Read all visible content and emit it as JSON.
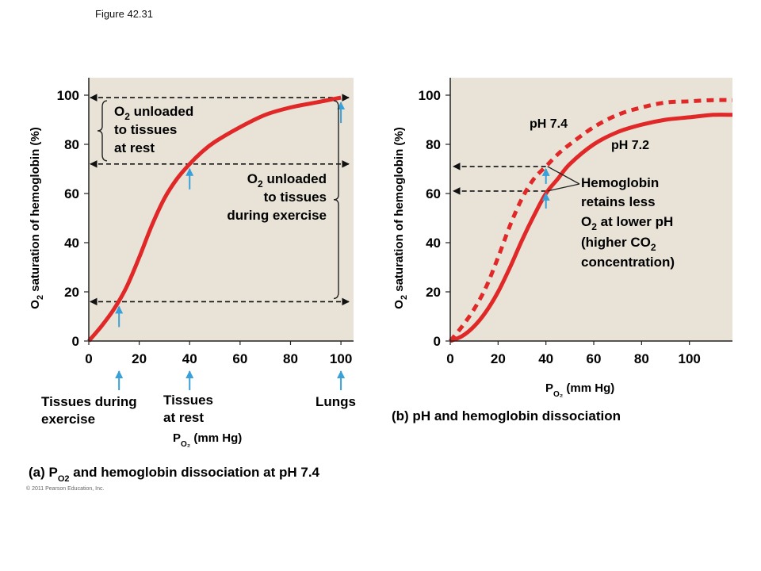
{
  "figure_label": "Figure 42.31",
  "copyright": "© 2011 Pearson Education, Inc.",
  "colors": {
    "plot_bg": "#e8e3d6",
    "curve": "#e02828",
    "arrow_blue": "#3aa0d8",
    "dash": "#111111"
  },
  "chart_data": [
    {
      "type": "line",
      "caption_prefix": "(a) P",
      "caption_sub": "O2",
      "caption_suffix": " and hemoglobin dissociation at pH 7.4",
      "ylabel_main": "O",
      "ylabel_sub": "2",
      "ylabel_rest": " saturation of hemoglobin (%)",
      "xlabel_main": "P",
      "xlabel_sub": "O₂",
      "xlabel_rest": " (mm Hg)",
      "xlim": [
        0,
        105
      ],
      "ylim": [
        0,
        100
      ],
      "xticks": [
        "0",
        "20",
        "40",
        "60",
        "80",
        "100"
      ],
      "yticks": [
        "0",
        "20",
        "40",
        "60",
        "80",
        "100"
      ],
      "grid": false,
      "series": [
        {
          "style": "solid",
          "x": [
            0,
            5,
            10,
            15,
            20,
            25,
            30,
            35,
            40,
            45,
            50,
            60,
            70,
            80,
            90,
            100
          ],
          "y": [
            0,
            6,
            13,
            22,
            34,
            47,
            58,
            66,
            72,
            77,
            81,
            87,
            92,
            95,
            97,
            99
          ]
        }
      ],
      "reference_levels": [
        {
          "x": 100,
          "y": 99
        },
        {
          "x": 40,
          "y": 72
        },
        {
          "x": 12,
          "y": 16
        }
      ],
      "annotations": {
        "rest_line1_main": "O",
        "rest_line1_sub": "2",
        "rest_line1_rest": " unloaded",
        "rest_line2": "to tissues",
        "rest_line3": "at rest",
        "exercise_line1_main": "O",
        "exercise_line1_sub": "2",
        "exercise_line1_rest": " unloaded",
        "exercise_line2": "to tissues",
        "exercise_line3": "during exercise"
      },
      "location_labels": {
        "exercise_line1": "Tissues during",
        "exercise_line2": "exercise",
        "rest_line1": "Tissues",
        "rest_line2": "at rest",
        "lungs": "Lungs"
      }
    },
    {
      "type": "line",
      "caption": "(b) pH and hemoglobin dissociation",
      "ylabel_main": "O",
      "ylabel_sub": "2",
      "ylabel_rest": " saturation of hemoglobin (%)",
      "xlabel_main": "P",
      "xlabel_sub": "O₂",
      "xlabel_rest": " (mm Hg)",
      "xlim": [
        0,
        118
      ],
      "ylim": [
        0,
        100
      ],
      "xticks": [
        "0",
        "20",
        "40",
        "60",
        "80",
        "100"
      ],
      "yticks": [
        "0",
        "20",
        "40",
        "60",
        "80",
        "100"
      ],
      "grid": false,
      "series": [
        {
          "name": "pH 7.4",
          "style": "dashed",
          "x": [
            0,
            5,
            10,
            15,
            20,
            25,
            30,
            35,
            40,
            45,
            50,
            60,
            70,
            80,
            90,
            100,
            110,
            118
          ],
          "y": [
            0,
            6,
            13,
            22,
            34,
            47,
            58,
            66,
            71,
            76,
            80,
            87,
            92,
            95,
            97,
            97.5,
            98,
            98
          ]
        },
        {
          "name": "pH 7.2",
          "style": "solid",
          "x": [
            0,
            5,
            10,
            15,
            20,
            25,
            30,
            35,
            40,
            45,
            50,
            60,
            70,
            80,
            90,
            100,
            110,
            118
          ],
          "y": [
            0,
            2,
            6,
            12,
            20,
            30,
            41,
            51,
            60,
            66,
            72,
            80,
            85,
            88,
            90,
            91,
            92,
            92
          ]
        }
      ],
      "reference_levels": [
        {
          "x": 40,
          "y": 71
        },
        {
          "x": 40,
          "y": 61
        }
      ],
      "annotations": {
        "line1": "Hemoglobin",
        "line2": "retains less",
        "line3_main": "O",
        "line3_sub": "2",
        "line3_rest": " at lower pH",
        "line4_main": "(higher CO",
        "line4_sub": "2",
        "line5": "concentration)"
      }
    }
  ]
}
